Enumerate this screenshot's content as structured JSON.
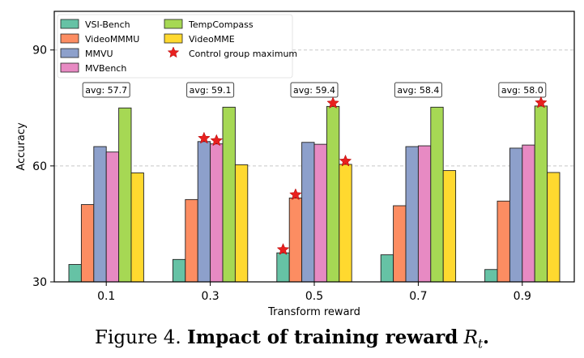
{
  "chart_data": {
    "type": "bar",
    "title": "",
    "xlabel": "Transform reward",
    "ylabel": "Accuracy",
    "ylim": [
      30,
      100
    ],
    "yticks": [
      30,
      60,
      90
    ],
    "grid": true,
    "categories": [
      "0.1",
      "0.3",
      "0.5",
      "0.7",
      "0.9"
    ],
    "series": [
      {
        "name": "VSI-Bench",
        "color": "#66c2a5",
        "values": [
          34.5,
          35.8,
          37.5,
          37.0,
          33.2
        ]
      },
      {
        "name": "VideoMMMU",
        "color": "#fc8d62",
        "values": [
          50.0,
          51.3,
          51.7,
          49.7,
          50.9
        ]
      },
      {
        "name": "MMVU",
        "color": "#8da0cb",
        "values": [
          65.0,
          66.3,
          66.1,
          65.0,
          64.6
        ]
      },
      {
        "name": "MVBench",
        "color": "#e78ac3",
        "values": [
          63.6,
          65.7,
          65.6,
          65.2,
          65.4
        ]
      },
      {
        "name": "TempCompass",
        "color": "#a6d854",
        "values": [
          75.0,
          75.2,
          75.4,
          75.2,
          75.5
        ]
      },
      {
        "name": "VideoMME",
        "color": "#ffd92f",
        "values": [
          58.2,
          60.3,
          60.4,
          58.8,
          58.3
        ]
      }
    ],
    "averages": [
      "avg: 57.7",
      "avg: 59.1",
      "avg: 59.4",
      "avg: 58.4",
      "avg: 58.0"
    ],
    "markers": {
      "label": "Control group maximum",
      "color": "#e8201f",
      "points": [
        {
          "category": "0.3",
          "series": "MMVU"
        },
        {
          "category": "0.3",
          "series": "MVBench"
        },
        {
          "category": "0.5",
          "series": "VSI-Bench"
        },
        {
          "category": "0.5",
          "series": "VideoMMMU"
        },
        {
          "category": "0.5",
          "series": "TempCompass"
        },
        {
          "category": "0.5",
          "series": "VideoMME"
        },
        {
          "category": "0.9",
          "series": "TempCompass"
        }
      ]
    },
    "legend_position": "top-left"
  },
  "caption": {
    "prefix": "Figure 4.",
    "bold": "Impact of training reward",
    "math": "R",
    "sub": "t",
    "suffix": "."
  }
}
